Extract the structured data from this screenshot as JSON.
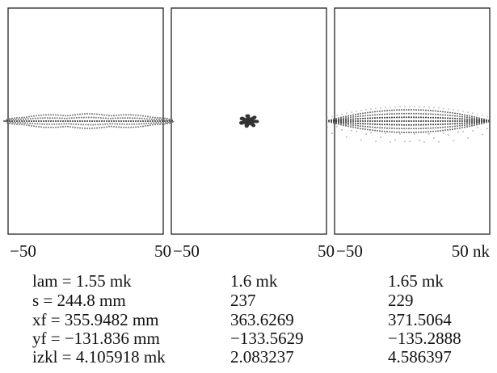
{
  "panels": [
    {
      "x_left": "−50",
      "x_right": "50"
    },
    {
      "x_left": "−50",
      "x_right": "50"
    },
    {
      "x_left": "−50",
      "x_right": "50 nk"
    }
  ],
  "table": {
    "rows": [
      [
        "lam = 1.55 mk",
        "1.6 mk",
        "1.65 mk"
      ],
      [
        "s = 244.8 mm",
        "237",
        "229"
      ],
      [
        "xf = 355.9482 mm",
        "363.6269",
        "371.5064"
      ],
      [
        "yf = −131.836 mm",
        "−133.5629",
        "−135.2888"
      ],
      [
        "izkl = 4.105918 mk",
        "2.083237",
        "4.586397"
      ]
    ]
  }
}
